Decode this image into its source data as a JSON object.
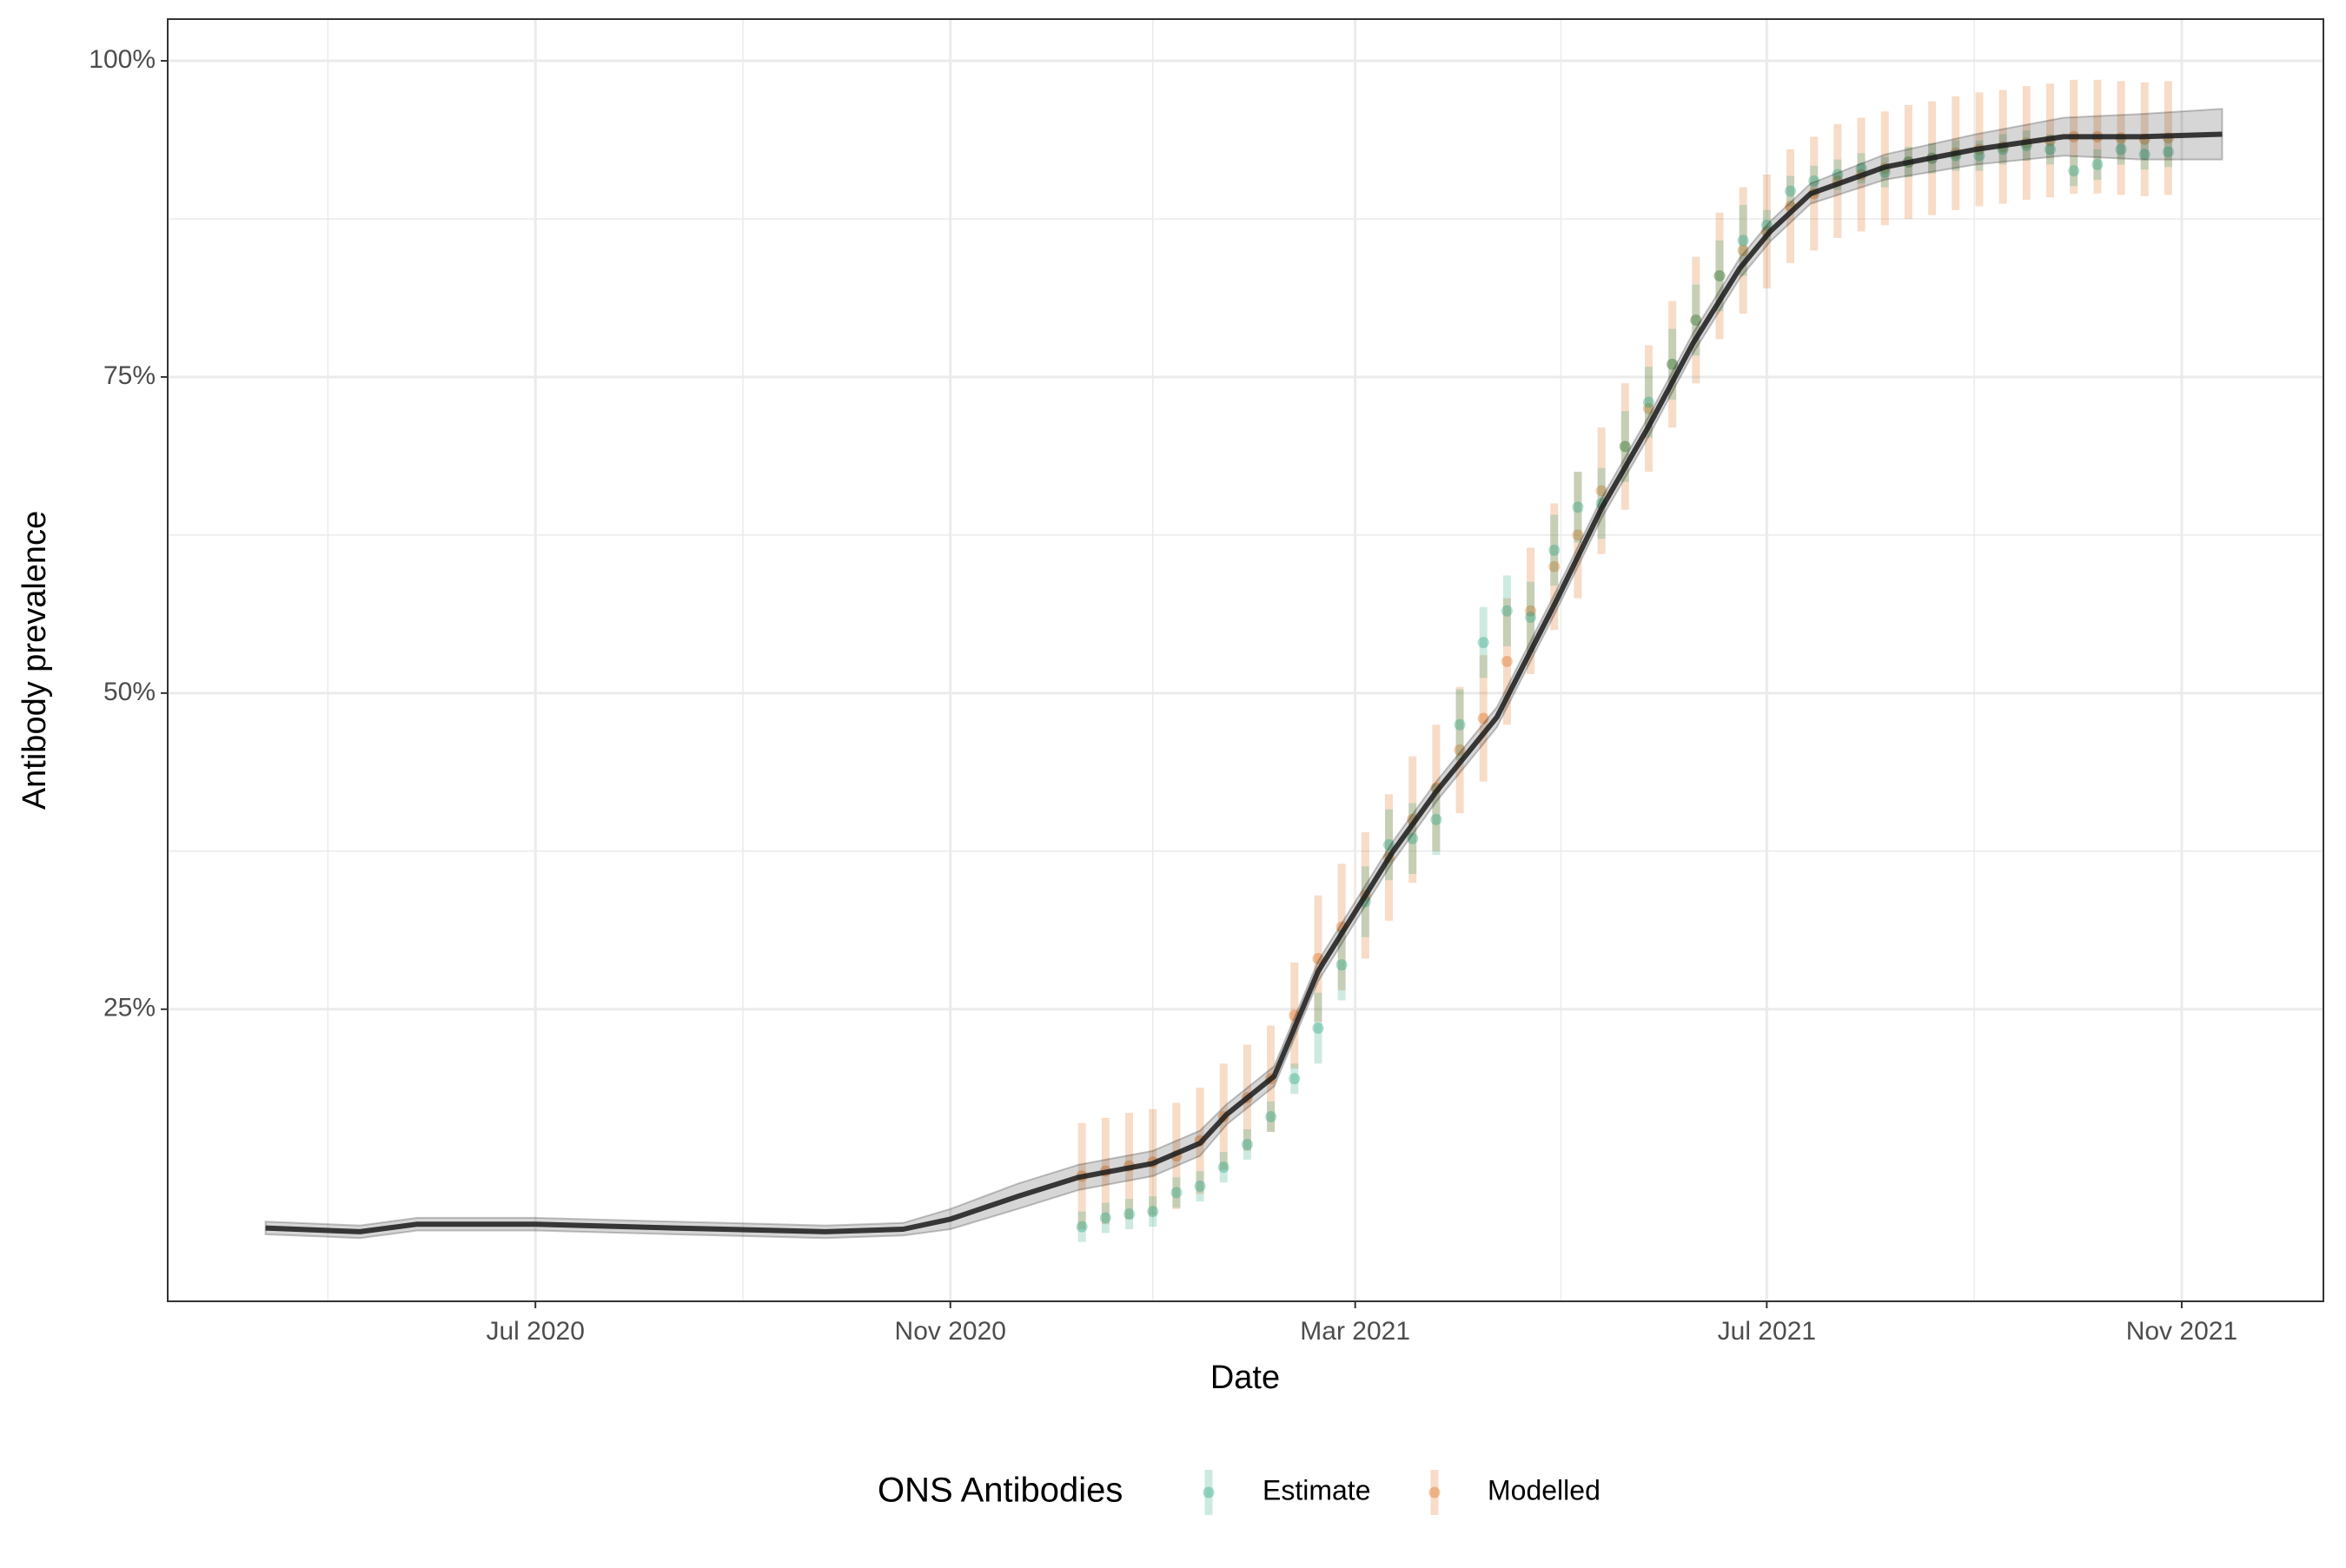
{
  "chart_data": {
    "type": "line",
    "xlabel": "Date",
    "ylabel": "Antibody prevalence",
    "xlim": [
      "2020-03-14",
      "2021-12-13"
    ],
    "ylim": [
      1.9,
      103.3
    ],
    "xticks": [
      {
        "value": "2020-07",
        "label": "Jul 2020"
      },
      {
        "value": "2020-11",
        "label": "Nov 2020"
      },
      {
        "value": "2021-03",
        "label": "Mar 2021"
      },
      {
        "value": "2021-07",
        "label": "Jul 2021"
      },
      {
        "value": "2021-11",
        "label": "Nov 2021"
      }
    ],
    "yticks": [
      {
        "value": 25,
        "label": "25%"
      },
      {
        "value": 50,
        "label": "50%"
      },
      {
        "value": 75,
        "label": "75%"
      },
      {
        "value": 100,
        "label": "100%"
      }
    ],
    "grid": true,
    "legend": "bottom",
    "x": [
      "2020-04-12",
      "2020-05-10",
      "2020-05-27",
      "2020-07-01",
      "2020-08-11",
      "2020-09-25",
      "2020-10-18",
      "2020-11-01",
      "2020-11-21",
      "2020-12-09",
      "2020-12-31",
      "2021-01-14",
      "2021-01-22",
      "2021-02-05",
      "2021-02-18",
      "2021-03-01",
      "2021-03-12",
      "2021-03-25",
      "2021-04-12",
      "2021-04-30",
      "2021-05-13",
      "2021-05-27",
      "2021-06-09",
      "2021-06-23",
      "2021-07-02",
      "2021-07-14",
      "2021-08-05",
      "2021-09-01",
      "2021-09-27",
      "2021-10-20",
      "2021-11-13"
    ],
    "series": [
      {
        "color": "#1a1a1a",
        "values": [
          7.7,
          7.4,
          8.0,
          8.0,
          7.7,
          7.4,
          7.6,
          8.4,
          10.2,
          11.7,
          12.8,
          14.4,
          16.7,
          19.7,
          28.0,
          32.7,
          37.4,
          42.2,
          48.1,
          57.5,
          64.6,
          71.1,
          77.6,
          83.6,
          86.5,
          89.5,
          91.6,
          93.0,
          94.0,
          94.0,
          94.2
        ],
        "lower": [
          7.2,
          6.9,
          7.5,
          7.5,
          7.2,
          6.9,
          7.1,
          7.6,
          9.2,
          10.7,
          11.8,
          13.4,
          15.9,
          18.9,
          27.2,
          31.9,
          36.6,
          41.4,
          47.3,
          56.7,
          63.8,
          70.3,
          76.8,
          82.8,
          85.7,
          88.7,
          90.6,
          91.8,
          92.5,
          92.2,
          92.2
        ],
        "upper": [
          8.2,
          7.9,
          8.5,
          8.5,
          8.2,
          7.9,
          8.1,
          9.2,
          11.2,
          12.7,
          13.8,
          15.4,
          17.5,
          20.5,
          28.8,
          33.5,
          38.2,
          43.0,
          48.9,
          58.3,
          65.4,
          71.9,
          78.4,
          84.4,
          87.3,
          90.3,
          92.6,
          94.2,
          95.5,
          95.8,
          96.2
        ]
      }
    ],
    "points": {
      "legend_title": "ONS Antibodies",
      "x": [
        "2020-12-10",
        "2020-12-17",
        "2020-12-24",
        "2020-12-31",
        "2021-01-07",
        "2021-01-14",
        "2021-01-21",
        "2021-01-28",
        "2021-02-04",
        "2021-02-11",
        "2021-02-18",
        "2021-02-25",
        "2021-03-04",
        "2021-03-11",
        "2021-03-18",
        "2021-03-25",
        "2021-04-01",
        "2021-04-08",
        "2021-04-15",
        "2021-04-22",
        "2021-04-29",
        "2021-05-06",
        "2021-05-13",
        "2021-05-20",
        "2021-05-27",
        "2021-06-03",
        "2021-06-10",
        "2021-06-17",
        "2021-06-24",
        "2021-07-01",
        "2021-07-08",
        "2021-07-15",
        "2021-07-22",
        "2021-07-29",
        "2021-08-05",
        "2021-08-12",
        "2021-08-19",
        "2021-08-26",
        "2021-09-02",
        "2021-09-09",
        "2021-09-16",
        "2021-09-23",
        "2021-09-30",
        "2021-10-07",
        "2021-10-14",
        "2021-10-21",
        "2021-10-28"
      ],
      "series": [
        {
          "name": "Estimate",
          "color": "#1b9e77",
          "values": [
            7.8,
            8.5,
            8.8,
            9.0,
            10.5,
            11.0,
            12.5,
            14.3,
            16.5,
            19.5,
            23.5,
            28.5,
            33.5,
            38.0,
            38.5,
            40.0,
            47.5,
            54.0,
            56.5,
            56.0,
            61.3,
            64.7,
            65.0,
            69.5,
            73.0,
            76.0,
            79.5,
            83.0,
            85.8,
            87.0,
            89.7,
            90.5,
            91.0,
            91.5,
            91.2,
            92.0,
            92.3,
            92.5,
            92.5,
            93.0,
            93.3,
            93.0,
            91.3,
            91.8,
            93.0,
            92.6,
            92.8
          ],
          "errors": [
            1.2,
            1.2,
            1.2,
            1.2,
            1.2,
            1.2,
            1.2,
            1.2,
            1.2,
            1.2,
            2.8,
            2.8,
            2.8,
            2.8,
            2.8,
            2.8,
            2.8,
            2.8,
            2.8,
            2.8,
            2.8,
            2.8,
            2.8,
            2.8,
            2.8,
            2.8,
            2.8,
            2.8,
            2.8,
            1.2,
            1.2,
            1.2,
            1.2,
            1.2,
            1.2,
            1.2,
            1.2,
            1.2,
            1.2,
            1.2,
            1.2,
            1.2,
            1.2,
            1.2,
            1.2,
            1.2,
            1.2
          ]
        },
        {
          "name": "Modelled",
          "color": "#d95f02",
          "values": [
            11.8,
            12.2,
            12.6,
            12.9,
            13.4,
            14.6,
            16.5,
            18.0,
            19.5,
            24.5,
            29.0,
            31.5,
            34.0,
            37.0,
            40.0,
            42.5,
            45.5,
            48.0,
            52.5,
            56.5,
            60.0,
            62.5,
            66.0,
            69.5,
            72.5,
            76.0,
            79.5,
            83.0,
            85.0,
            86.5,
            88.5,
            89.5,
            90.5,
            91.0,
            91.5,
            92.0,
            92.3,
            92.7,
            93.0,
            93.2,
            93.5,
            93.7,
            94.0,
            94.0,
            93.9,
            93.8,
            93.9
          ],
          "errors": [
            4.2,
            4.2,
            4.2,
            4.2,
            4.2,
            4.2,
            4.2,
            4.2,
            4.2,
            4.2,
            5.0,
            5.0,
            5.0,
            5.0,
            5.0,
            5.0,
            5.0,
            5.0,
            5.0,
            5.0,
            5.0,
            5.0,
            5.0,
            5.0,
            5.0,
            5.0,
            5.0,
            5.0,
            5.0,
            4.5,
            4.5,
            4.5,
            4.5,
            4.5,
            4.5,
            4.5,
            4.5,
            4.5,
            4.5,
            4.5,
            4.5,
            4.5,
            4.5,
            4.5,
            4.5,
            4.5,
            4.5
          ]
        }
      ]
    }
  }
}
